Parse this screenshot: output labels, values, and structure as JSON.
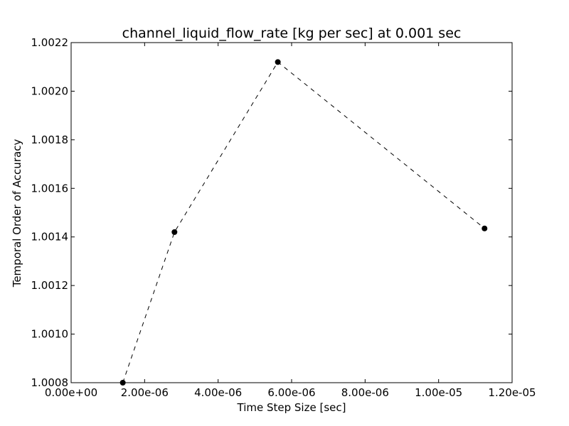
{
  "chart_data": {
    "type": "line",
    "title": "channel_liquid_flow_rate [kg per sec] at 0.001 sec",
    "xlabel": "Time Step Size [sec]",
    "ylabel": "Temporal Order of Accuracy",
    "xlim": [
      0,
      1.2e-05
    ],
    "ylim": [
      1.0008,
      1.0022
    ],
    "x_ticks": [
      0,
      2e-06,
      4e-06,
      6e-06,
      8e-06,
      1e-05,
      1.2e-05
    ],
    "x_tick_labels": [
      "0.00e+00",
      "2.00e-06",
      "4.00e-06",
      "6.00e-06",
      "8.00e-06",
      "1.00e-05",
      "1.20e-05"
    ],
    "y_ticks": [
      1.0008,
      1.001,
      1.0012,
      1.0014,
      1.0016,
      1.0018,
      1.002,
      1.0022
    ],
    "y_tick_labels": [
      "1.0008",
      "1.0010",
      "1.0012",
      "1.0014",
      "1.0016",
      "1.0018",
      "1.0020",
      "1.0022"
    ],
    "grid": false,
    "series": [
      {
        "x": [
          1.40625e-06,
          2.8125e-06,
          5.625e-06,
          1.125e-05
        ],
        "y": [
          1.0008,
          1.00142,
          1.00212,
          1.001435
        ],
        "color": "#000000",
        "line_style": "dashed",
        "marker": "circle"
      }
    ]
  }
}
